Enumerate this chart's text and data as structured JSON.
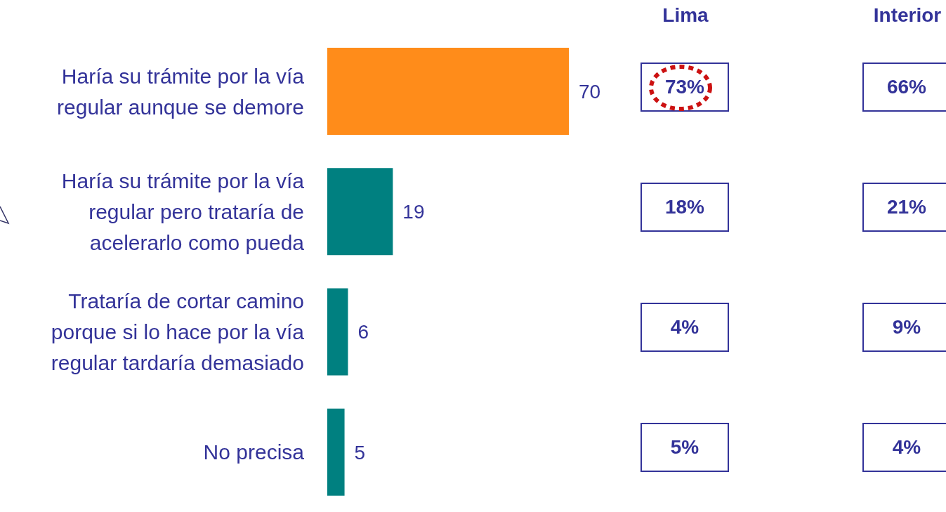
{
  "chart_data": [
    {
      "type": "bar",
      "orientation": "horizontal",
      "categories": [
        "Haría su trámite por la vía regular aunque se demore",
        "Haría su trámite por la vía regular pero trataría de acelerarlo como pueda",
        "Trataría de cortar camino porque si lo hace por la vía regular tardaría demasiado",
        "No precisa"
      ],
      "values": [
        70,
        19,
        6,
        5
      ],
      "colors": [
        "#ff8c1a",
        "#008080",
        "#008080",
        "#008080"
      ],
      "data_labels": true,
      "tick_labels": "y"
    },
    {
      "type": "other",
      "annotations": [
        "Lima",
        "Interior",
        "73%",
        "66%",
        "18%",
        "21%",
        "4%",
        "9%",
        "5%",
        "4%"
      ]
    }
  ]
}
